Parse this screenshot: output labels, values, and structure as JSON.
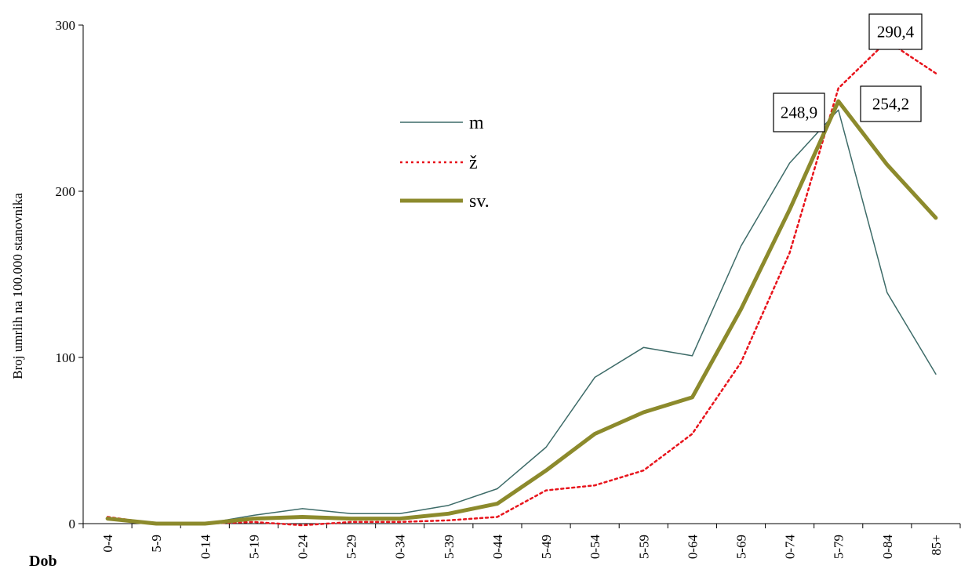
{
  "chart_data": {
    "type": "line",
    "title": "",
    "xlabel": "Dob",
    "ylabel": "Broj umrlih na 100.000 stanovnika",
    "ylim": [
      0,
      300
    ],
    "yticks": [
      "0",
      "100",
      "200",
      "300"
    ],
    "grid": false,
    "legend_placement": "upper-center",
    "categories": [
      "0-4",
      "5-9",
      "0-14",
      "5-19",
      "0-24",
      "5-29",
      "0-34",
      "5-39",
      "0-44",
      "5-49",
      "0-54",
      "5-59",
      "0-64",
      "5-69",
      "0-74",
      "5-79",
      "0-84",
      "85+"
    ],
    "series": [
      {
        "name": "m",
        "color": "#3d6b68",
        "style": "solid",
        "values": [
          3,
          0,
          0,
          5,
          9,
          6,
          6,
          11,
          21,
          46,
          88,
          106,
          101,
          167,
          217,
          248.9,
          139,
          90
        ]
      },
      {
        "name": "ž",
        "color": "#e8141c",
        "style": "dotted",
        "values": [
          4,
          0,
          0,
          1,
          -1,
          1,
          1,
          2,
          4,
          20,
          23,
          32,
          54,
          97,
          163,
          262,
          290.4,
          271
        ]
      },
      {
        "name": "sv.",
        "color": "#8c8a2c",
        "style": "thick",
        "values": [
          3,
          0,
          0,
          3,
          4,
          3,
          3,
          6,
          12,
          32,
          54,
          67,
          76,
          129,
          189,
          254.2,
          216,
          184
        ]
      }
    ],
    "annotations": [
      "248,9",
      "254,2",
      "290,4"
    ]
  }
}
